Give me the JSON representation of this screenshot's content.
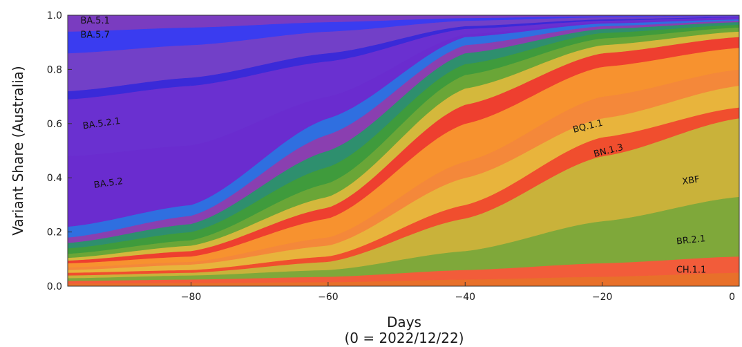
{
  "chart_data": {
    "type": "area",
    "title": "",
    "ylabel": "Variant Share (Australia)",
    "xlabel": "Days",
    "xlabel_sub": "(0 = 2022/12/22)",
    "xlim": [
      -98,
      0
    ],
    "ylim": [
      0,
      1
    ],
    "x_ticks": [
      -80,
      -60,
      -40,
      -20,
      0
    ],
    "x_tick_labels": [
      "−80",
      "−60",
      "−40",
      "−20",
      "0"
    ],
    "y_ticks": [
      0.0,
      0.2,
      0.4,
      0.6,
      0.8,
      1.0
    ],
    "y_tick_labels": [
      "0.0",
      "0.2",
      "0.4",
      "0.6",
      "0.8",
      "1.0"
    ],
    "grid": false,
    "legend": "none",
    "note": "Cumulative shares (top edge of each band) read from the figure at x = -98, -80, -60, -40, -20, 0.",
    "x": [
      -98,
      -80,
      -60,
      -40,
      -20,
      0
    ],
    "series": [
      {
        "name": "",
        "color": "#e8702a",
        "tops": [
          0.01,
          0.012,
          0.015,
          0.025,
          0.035,
          0.05
        ]
      },
      {
        "name": "CH.1.1",
        "color": "#f25c3a",
        "tops": [
          0.02,
          0.025,
          0.035,
          0.06,
          0.085,
          0.11
        ]
      },
      {
        "name": "BR.2.1",
        "color": "#7fa83a",
        "tops": [
          0.03,
          0.04,
          0.06,
          0.13,
          0.24,
          0.33
        ]
      },
      {
        "name": "XBF",
        "color": "#c9b23a",
        "tops": [
          0.04,
          0.05,
          0.09,
          0.25,
          0.48,
          0.62
        ]
      },
      {
        "name": "",
        "color": "#f04e2e",
        "tops": [
          0.05,
          0.06,
          0.11,
          0.3,
          0.55,
          0.66
        ]
      },
      {
        "name": "BN.1.3",
        "color": "#e8b43c",
        "tops": [
          0.06,
          0.08,
          0.15,
          0.4,
          0.62,
          0.74
        ]
      },
      {
        "name": "",
        "color": "#f4883a",
        "tops": [
          0.07,
          0.09,
          0.18,
          0.46,
          0.7,
          0.8
        ]
      },
      {
        "name": "BQ.1.1",
        "color": "#f7922f",
        "tops": [
          0.085,
          0.11,
          0.25,
          0.6,
          0.81,
          0.88
        ]
      },
      {
        "name": "",
        "color": "#ee3f2f",
        "tops": [
          0.095,
          0.13,
          0.29,
          0.67,
          0.86,
          0.92
        ]
      },
      {
        "name": "",
        "color": "#d4b83c",
        "tops": [
          0.105,
          0.15,
          0.33,
          0.73,
          0.89,
          0.94
        ]
      },
      {
        "name": "",
        "color": "#6aa637",
        "tops": [
          0.12,
          0.17,
          0.38,
          0.78,
          0.915,
          0.955
        ]
      },
      {
        "name": "",
        "color": "#3f9b3c",
        "tops": [
          0.14,
          0.2,
          0.44,
          0.82,
          0.935,
          0.965
        ]
      },
      {
        "name": "",
        "color": "#2e8f6e",
        "tops": [
          0.16,
          0.23,
          0.5,
          0.86,
          0.95,
          0.975
        ]
      },
      {
        "name": "",
        "color": "#8a3fb0",
        "tops": [
          0.18,
          0.26,
          0.56,
          0.89,
          0.96,
          0.98
        ]
      },
      {
        "name": "",
        "color": "#2f6fe0",
        "tops": [
          0.22,
          0.3,
          0.62,
          0.92,
          0.97,
          0.985
        ]
      },
      {
        "name": "BA.5.2",
        "color": "#6a2ccf",
        "tops": [
          0.48,
          0.52,
          0.7,
          0.93,
          0.975,
          0.99
        ]
      },
      {
        "name": "BA.5.2.1",
        "color": "#6a30d0",
        "tops": [
          0.69,
          0.74,
          0.83,
          0.95,
          0.98,
          0.993
        ]
      },
      {
        "name": "",
        "color": "#3a2ad8",
        "tops": [
          0.72,
          0.77,
          0.86,
          0.96,
          0.985,
          0.995
        ]
      },
      {
        "name": "",
        "color": "#7240c8",
        "tops": [
          0.86,
          0.89,
          0.94,
          0.98,
          0.993,
          0.998
        ]
      },
      {
        "name": "BA.5.7",
        "color": "#3a3cf0",
        "tops": [
          0.94,
          0.955,
          0.975,
          0.99,
          0.997,
          0.999
        ]
      },
      {
        "name": "BA.5.1",
        "color": "#7a3cc0",
        "tops": [
          1.0,
          1.0,
          1.0,
          1.0,
          1.0,
          1.0
        ]
      }
    ],
    "labels": [
      {
        "text": "BA.5.1",
        "x": -94,
        "y": 0.97,
        "size": "small-medium",
        "rotate": 0
      },
      {
        "text": "BA.5.7",
        "x": -94,
        "y": 0.917,
        "size": "small-medium",
        "rotate": 0
      },
      {
        "text": "BA.5.2.1",
        "x": -93,
        "y": 0.59,
        "size": "medium",
        "rotate": -8
      },
      {
        "text": "BA.5.2",
        "x": -92,
        "y": 0.37,
        "size": "medium",
        "rotate": -8
      },
      {
        "text": "BQ.1.1",
        "x": -22,
        "y": 0.58,
        "size": "medium",
        "rotate": -14
      },
      {
        "text": "BN.1.3",
        "x": -19,
        "y": 0.49,
        "size": "small-medium",
        "rotate": -14
      },
      {
        "text": "XBF",
        "x": -7,
        "y": 0.38,
        "size": "medium",
        "rotate": -8
      },
      {
        "text": "BR.2.1",
        "x": -7,
        "y": 0.16,
        "size": "medium",
        "rotate": -6
      },
      {
        "text": "CH.1.1",
        "x": -7,
        "y": 0.05,
        "size": "small-medium",
        "rotate": 0
      }
    ]
  }
}
